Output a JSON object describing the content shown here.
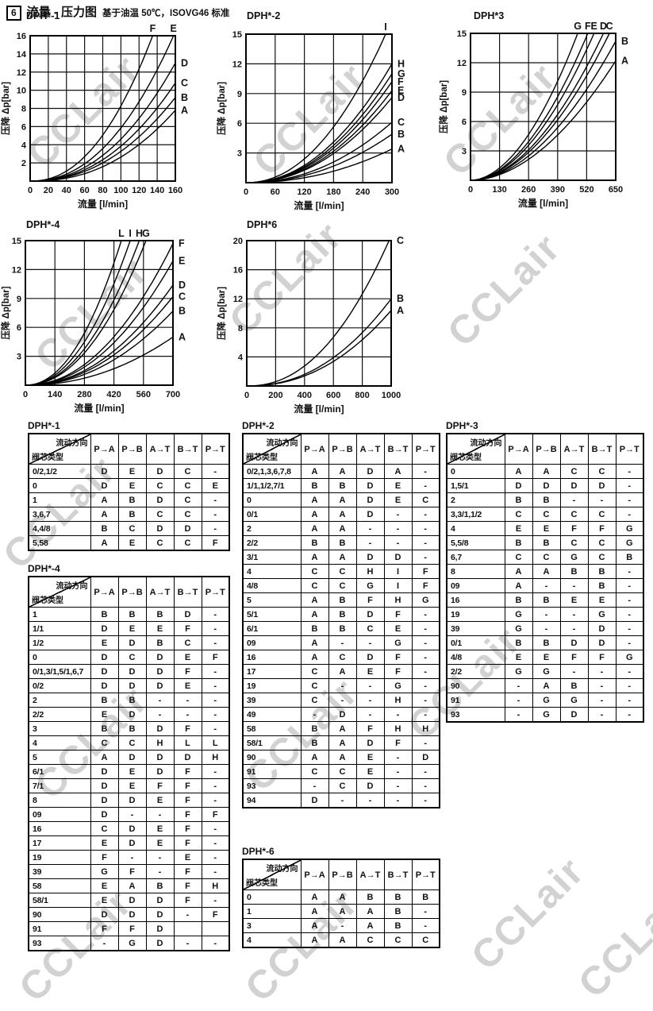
{
  "page": {
    "section_number": "6",
    "title": "流量 - 压力图",
    "subtitle": "基于油温 50℃，ISOVG46 标准",
    "watermark": "CCLair"
  },
  "chart_data": [
    {
      "type": "line",
      "title": "DPH*-1",
      "xlabel": "流量 [l/min]",
      "ylabel": "压降 Δp[bar]",
      "xlim": [
        0,
        160
      ],
      "ylim": [
        0,
        16
      ],
      "grid": true,
      "legend_position": "curve-end-labels",
      "xticks": [
        0,
        20,
        40,
        60,
        80,
        100,
        120,
        140,
        160
      ],
      "yticks": [
        2,
        4,
        6,
        8,
        10,
        12,
        14,
        16
      ],
      "series": [
        {
          "name": "F",
          "end_x": 135,
          "end_y": 16,
          "exponent": 2.2,
          "label_pos": "top"
        },
        {
          "name": "E",
          "end_x": 158,
          "end_y": 16,
          "exponent": 2.2,
          "label_pos": "top"
        },
        {
          "name": "D",
          "end_x": 160,
          "end_y": 13,
          "exponent": 2.2,
          "label_pos": "right"
        },
        {
          "name": "C",
          "end_x": 160,
          "end_y": 10.8,
          "exponent": 2.2,
          "label_pos": "right"
        },
        {
          "name": "B",
          "end_x": 160,
          "end_y": 9.2,
          "exponent": 2.2,
          "label_pos": "right"
        },
        {
          "name": "A",
          "end_x": 160,
          "end_y": 7.8,
          "exponent": 2.3,
          "label_pos": "right"
        }
      ]
    },
    {
      "type": "line",
      "title": "DPH*-2",
      "xlabel": "流量 [l/min]",
      "ylabel": "压降 Δp[bar]",
      "xlim": [
        0,
        300
      ],
      "ylim": [
        0,
        15
      ],
      "grid": true,
      "legend_position": "curve-end-labels",
      "xticks": [
        0,
        60,
        120,
        180,
        240,
        300
      ],
      "yticks": [
        3,
        6,
        9,
        12,
        15
      ],
      "series": [
        {
          "name": "I",
          "end_x": 287,
          "end_y": 15,
          "exponent": 2.1,
          "label_pos": "top"
        },
        {
          "name": "H",
          "end_x": 300,
          "end_y": 12,
          "exponent": 2.1,
          "label_pos": "right"
        },
        {
          "name": "G",
          "end_x": 300,
          "end_y": 11,
          "exponent": 2.1,
          "label_pos": "right"
        },
        {
          "name": "F",
          "end_x": 300,
          "end_y": 10.2,
          "exponent": 2.1,
          "label_pos": "right"
        },
        {
          "name": "E",
          "end_x": 300,
          "end_y": 9.3,
          "exponent": 2.1,
          "label_pos": "right"
        },
        {
          "name": "D",
          "end_x": 300,
          "end_y": 8.6,
          "exponent": 2.1,
          "label_pos": "right"
        },
        {
          "name": "C",
          "end_x": 300,
          "end_y": 6.1,
          "exponent": 2.1,
          "label_pos": "right"
        },
        {
          "name": "B",
          "end_x": 300,
          "end_y": 4.9,
          "exponent": 2.1,
          "label_pos": "right"
        },
        {
          "name": "A",
          "end_x": 300,
          "end_y": 3.4,
          "exponent": 2.1,
          "label_pos": "right"
        }
      ]
    },
    {
      "type": "line",
      "title": "DPH*3",
      "xlabel": "流量 [l/min]",
      "ylabel": "压降 Δp[bar]",
      "xlim": [
        0,
        650
      ],
      "ylim": [
        0,
        15
      ],
      "grid": true,
      "legend_position": "curve-end-labels",
      "xticks": [
        0,
        130,
        260,
        390,
        520,
        650
      ],
      "yticks": [
        3,
        6,
        9,
        12,
        15
      ],
      "series": [
        {
          "name": "G",
          "end_x": 480,
          "end_y": 15,
          "exponent": 1.9,
          "label_pos": "top"
        },
        {
          "name": "F",
          "end_x": 525,
          "end_y": 15,
          "exponent": 1.9,
          "label_pos": "top"
        },
        {
          "name": "E",
          "end_x": 553,
          "end_y": 15,
          "exponent": 1.9,
          "label_pos": "top"
        },
        {
          "name": "D",
          "end_x": 595,
          "end_y": 15,
          "exponent": 1.9,
          "label_pos": "top"
        },
        {
          "name": "C",
          "end_x": 622,
          "end_y": 15,
          "exponent": 1.9,
          "label_pos": "top"
        },
        {
          "name": "B",
          "end_x": 650,
          "end_y": 14.2,
          "exponent": 1.9,
          "label_pos": "right"
        },
        {
          "name": "A",
          "end_x": 650,
          "end_y": 12.2,
          "exponent": 1.9,
          "label_pos": "right"
        }
      ]
    },
    {
      "type": "line",
      "title": "DPH*-4",
      "xlabel": "流量 [l/min]",
      "ylabel": "压降 Δp[bar]",
      "xlim": [
        0,
        700
      ],
      "ylim": [
        0,
        15
      ],
      "grid": true,
      "legend_position": "curve-end-labels",
      "xticks": [
        0,
        140,
        280,
        420,
        560,
        700
      ],
      "yticks": [
        3,
        6,
        9,
        12,
        15
      ],
      "series": [
        {
          "name": "L",
          "end_x": 455,
          "end_y": 15,
          "exponent": 2.1,
          "label_pos": "top"
        },
        {
          "name": "I",
          "end_x": 497,
          "end_y": 15,
          "exponent": 2.1,
          "label_pos": "top"
        },
        {
          "name": "H",
          "end_x": 540,
          "end_y": 15,
          "exponent": 2.1,
          "label_pos": "top"
        },
        {
          "name": "G",
          "end_x": 572,
          "end_y": 15,
          "exponent": 2.1,
          "label_pos": "top"
        },
        {
          "name": "F",
          "end_x": 700,
          "end_y": 14.7,
          "exponent": 2.1,
          "label_pos": "right"
        },
        {
          "name": "E",
          "end_x": 700,
          "end_y": 12.9,
          "exponent": 2.1,
          "label_pos": "right"
        },
        {
          "name": "D",
          "end_x": 700,
          "end_y": 10.4,
          "exponent": 2.1,
          "label_pos": "right"
        },
        {
          "name": "C",
          "end_x": 700,
          "end_y": 9.2,
          "exponent": 2.1,
          "label_pos": "right"
        },
        {
          "name": "B",
          "end_x": 700,
          "end_y": 7.7,
          "exponent": 2.1,
          "label_pos": "right"
        },
        {
          "name": "A",
          "end_x": 700,
          "end_y": 5.0,
          "exponent": 2.1,
          "label_pos": "right"
        }
      ]
    },
    {
      "type": "line",
      "title": "DPH*6",
      "xlabel": "流量 [l/min]",
      "ylabel": "压降 Δp[bar]",
      "xlim": [
        0,
        1000
      ],
      "ylim": [
        0,
        20
      ],
      "grid": true,
      "legend_position": "curve-end-labels",
      "xticks": [
        0,
        200,
        400,
        600,
        800,
        1000
      ],
      "yticks": [
        4,
        8,
        12,
        16,
        20
      ],
      "series": [
        {
          "name": "C",
          "end_x": 985,
          "end_y": 20,
          "exponent": 2.2,
          "label_pos": "right"
        },
        {
          "name": "B",
          "end_x": 1000,
          "end_y": 12,
          "exponent": 2.2,
          "label_pos": "right"
        },
        {
          "name": "A",
          "end_x": 1000,
          "end_y": 10.4,
          "exponent": 2.2,
          "label_pos": "right"
        }
      ]
    }
  ],
  "tables": [
    {
      "name": "DPH*-1",
      "corner_top": "流动方向",
      "corner_bottom": "阀芯类型",
      "columns": [
        "P→A",
        "P→B",
        "A→T",
        "B→T",
        "P→T"
      ],
      "rows": [
        [
          "0/2,1/2",
          "D",
          "E",
          "D",
          "C",
          "-"
        ],
        [
          "0",
          "D",
          "E",
          "C",
          "C",
          "E"
        ],
        [
          "1",
          "A",
          "B",
          "D",
          "C",
          "-"
        ],
        [
          "3,6,7",
          "A",
          "B",
          "C",
          "C",
          "-"
        ],
        [
          "4,4/8",
          "B",
          "C",
          "D",
          "D",
          "-"
        ],
        [
          "5,58",
          "A",
          "E",
          "C",
          "C",
          "F"
        ]
      ]
    },
    {
      "name": "DPH*-2",
      "corner_top": "流动方向",
      "corner_bottom": "阀芯类型",
      "columns": [
        "P→A",
        "P→B",
        "A→T",
        "B→T",
        "P→T"
      ],
      "rows": [
        [
          "0/2,1,3,6,7,8",
          "A",
          "A",
          "D",
          "A",
          "-"
        ],
        [
          "1/1,1/2,7/1",
          "B",
          "B",
          "D",
          "E",
          "-"
        ],
        [
          "0",
          "A",
          "A",
          "D",
          "E",
          "C"
        ],
        [
          "0/1",
          "A",
          "A",
          "D",
          "-",
          "-"
        ],
        [
          "2",
          "A",
          "A",
          "-",
          "-",
          "-"
        ],
        [
          "2/2",
          "B",
          "B",
          "-",
          "-",
          "-"
        ],
        [
          "3/1",
          "A",
          "A",
          "D",
          "D",
          "-"
        ],
        [
          "4",
          "C",
          "C",
          "H",
          "I",
          "F"
        ],
        [
          "4/8",
          "C",
          "C",
          "G",
          "I",
          "F"
        ],
        [
          "5",
          "A",
          "B",
          "F",
          "H",
          "G"
        ],
        [
          "5/1",
          "A",
          "B",
          "D",
          "F",
          "-"
        ],
        [
          "6/1",
          "B",
          "B",
          "C",
          "E",
          "-"
        ],
        [
          "09",
          "A",
          "-",
          "-",
          "G",
          "-"
        ],
        [
          "16",
          "A",
          "C",
          "D",
          "F",
          "-"
        ],
        [
          "17",
          "C",
          "A",
          "E",
          "F",
          "-"
        ],
        [
          "19",
          "C",
          "-",
          "-",
          "G",
          "-"
        ],
        [
          "39",
          "C",
          "-",
          "-",
          "H",
          "-"
        ],
        [
          "49",
          "-",
          "D",
          "-",
          "-",
          "-"
        ],
        [
          "58",
          "B",
          "A",
          "F",
          "H",
          "H"
        ],
        [
          "58/1",
          "B",
          "A",
          "D",
          "F",
          "-"
        ],
        [
          "90",
          "A",
          "A",
          "E",
          "-",
          "D"
        ],
        [
          "91",
          "C",
          "C",
          "E",
          "-",
          "-"
        ],
        [
          "93",
          "-",
          "C",
          "D",
          "-",
          "-"
        ],
        [
          "94",
          "D",
          "-",
          "-",
          "-",
          "-"
        ]
      ]
    },
    {
      "name": "DPH*-3",
      "corner_top": "流动方向",
      "corner_bottom": "阀芯类型",
      "columns": [
        "P→A",
        "P→B",
        "A→T",
        "B→T",
        "P→T"
      ],
      "rows": [
        [
          "0",
          "A",
          "A",
          "C",
          "C",
          "-"
        ],
        [
          "1,5/1",
          "D",
          "D",
          "D",
          "D",
          "-"
        ],
        [
          "2",
          "B",
          "B",
          "-",
          "-",
          "-"
        ],
        [
          "3,3/1,1/2",
          "C",
          "C",
          "C",
          "C",
          "-"
        ],
        [
          "4",
          "E",
          "E",
          "F",
          "F",
          "G"
        ],
        [
          "5,5/8",
          "B",
          "B",
          "C",
          "C",
          "G"
        ],
        [
          "6,7",
          "C",
          "C",
          "G",
          "C",
          "B"
        ],
        [
          "8",
          "A",
          "A",
          "B",
          "B",
          "-"
        ],
        [
          "09",
          "A",
          "-",
          "-",
          "B",
          "-"
        ],
        [
          "16",
          "B",
          "B",
          "E",
          "E",
          "-"
        ],
        [
          "19",
          "G",
          "-",
          "-",
          "G",
          "-"
        ],
        [
          "39",
          "G",
          "-",
          "-",
          "D",
          "-"
        ],
        [
          "0/1",
          "B",
          "B",
          "D",
          "D",
          "-"
        ],
        [
          "4/8",
          "E",
          "E",
          "F",
          "F",
          "G"
        ],
        [
          "2/2",
          "G",
          "G",
          "-",
          "-",
          "-"
        ],
        [
          "90",
          "-",
          "A",
          "B",
          "-",
          "-"
        ],
        [
          "91",
          "-",
          "G",
          "G",
          "-",
          "-"
        ],
        [
          "93",
          "-",
          "G",
          "D",
          "-",
          "-"
        ]
      ]
    },
    {
      "name": "DPH*-4",
      "corner_top": "流动方向",
      "corner_bottom": "阀芯类型",
      "columns": [
        "P→A",
        "P→B",
        "A→T",
        "B→T",
        "P→T"
      ],
      "rows": [
        [
          "1",
          "B",
          "B",
          "B",
          "D",
          "-"
        ],
        [
          "1/1",
          "D",
          "E",
          "E",
          "F",
          "-"
        ],
        [
          "1/2",
          "E",
          "D",
          "B",
          "C",
          "-"
        ],
        [
          "0",
          "D",
          "C",
          "D",
          "E",
          "F"
        ],
        [
          "0/1,3/1,5/1,6,7",
          "D",
          "D",
          "D",
          "F",
          "-"
        ],
        [
          "0/2",
          "D",
          "D",
          "D",
          "E",
          "-"
        ],
        [
          "2",
          "B",
          "B",
          "-",
          "-",
          "-"
        ],
        [
          "2/2",
          "E",
          "D",
          "-",
          "-",
          "-"
        ],
        [
          "3",
          "B",
          "B",
          "D",
          "F",
          "-"
        ],
        [
          "4",
          "C",
          "C",
          "H",
          "L",
          "L"
        ],
        [
          "5",
          "A",
          "D",
          "D",
          "D",
          "H"
        ],
        [
          "6/1",
          "D",
          "E",
          "D",
          "F",
          "-"
        ],
        [
          "7/1",
          "D",
          "E",
          "F",
          "F",
          "-"
        ],
        [
          "8",
          "D",
          "D",
          "E",
          "F",
          "-"
        ],
        [
          "09",
          "D",
          "-",
          "-",
          "F",
          "F"
        ],
        [
          "16",
          "C",
          "D",
          "E",
          "F",
          "-"
        ],
        [
          "17",
          "E",
          "D",
          "E",
          "F",
          "-"
        ],
        [
          "19",
          "F",
          "-",
          "-",
          "E",
          "-"
        ],
        [
          "39",
          "G",
          "F",
          "-",
          "F",
          "-"
        ],
        [
          "58",
          "E",
          "A",
          "B",
          "F",
          "H"
        ],
        [
          "58/1",
          "E",
          "D",
          "D",
          "F",
          "-"
        ],
        [
          "90",
          "D",
          "D",
          "D",
          "-",
          "F"
        ],
        [
          "91",
          "F",
          "F",
          "D",
          "",
          ""
        ],
        [
          "93",
          "-",
          "G",
          "D",
          "-",
          "-"
        ]
      ]
    },
    {
      "name": "DPH*-6",
      "corner_top": "流动方向",
      "corner_bottom": "阀芯类型",
      "columns": [
        "P→A",
        "P→B",
        "A→T",
        "B→T",
        "P→T"
      ],
      "rows": [
        [
          "0",
          "A",
          "A",
          "B",
          "B",
          "B"
        ],
        [
          "1",
          "A",
          "A",
          "A",
          "B",
          "-"
        ],
        [
          "3",
          "A",
          "-",
          "A",
          "B",
          "-"
        ],
        [
          "4",
          "A",
          "A",
          "C",
          "C",
          "C"
        ]
      ]
    }
  ]
}
